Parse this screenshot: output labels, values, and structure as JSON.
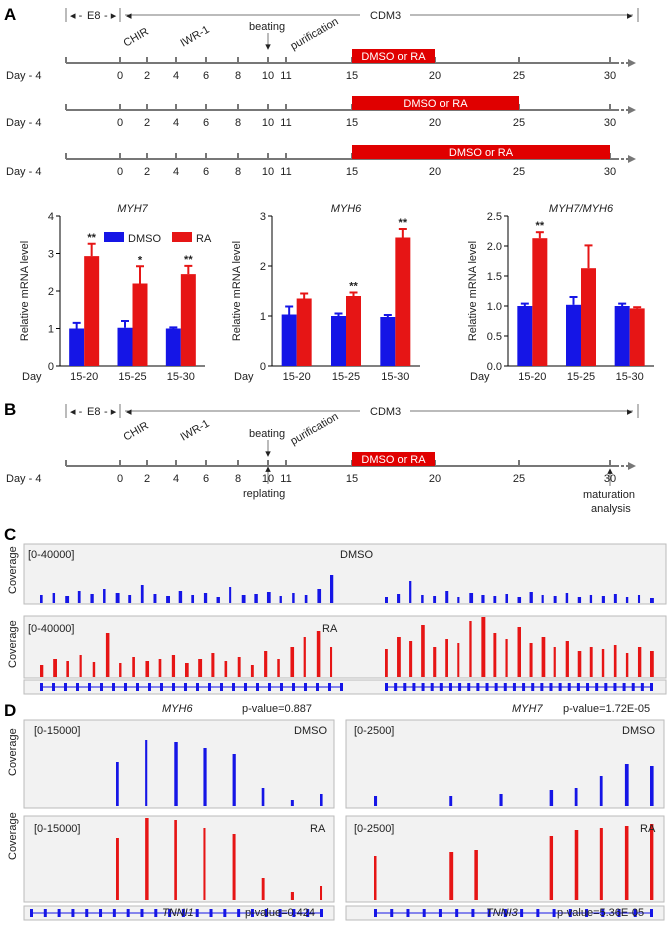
{
  "colors": {
    "dmso": "#1515e6",
    "ra": "#e61515",
    "axis": "#777777",
    "bar": "#e00000",
    "track_bg": "#f2f2f2"
  },
  "timelines": {
    "day_prefix": "Day - 4",
    "day_ticks": [
      {
        "label": "0",
        "day": 0
      },
      {
        "label": "2",
        "day": 2
      },
      {
        "label": "4",
        "day": 4
      },
      {
        "label": "6",
        "day": 6
      },
      {
        "label": "8",
        "day": 8
      },
      {
        "label": "10",
        "day": 10
      },
      {
        "label": "11",
        "day": 11
      },
      {
        "label": "15",
        "day": 15
      },
      {
        "label": "20",
        "day": 20
      },
      {
        "label": "25",
        "day": 25
      },
      {
        "label": "30",
        "day": 30
      }
    ],
    "e8": "E8",
    "cdm3": "CDM3",
    "chir": "CHIR",
    "iwr": "IWR-1",
    "beating": "beating",
    "purification": "purification",
    "treatment": "DMSO or RA",
    "replating": "replating",
    "maturation": "maturation\nanalysis",
    "windows": [
      {
        "start": 15,
        "end": 20
      },
      {
        "start": 15,
        "end": 25
      },
      {
        "start": 15,
        "end": 30
      }
    ]
  },
  "panels": {
    "a": "A",
    "b": "B",
    "c": "C",
    "d": "D"
  },
  "chart_data": [
    {
      "type": "bar",
      "title": "MYH7",
      "ylabel": "Relative mRNA level",
      "xlabel": "Day",
      "ylim": [
        0,
        4
      ],
      "yticks": [
        "0",
        "1",
        "2",
        "3",
        "4"
      ],
      "categories": [
        "15-20",
        "15-25",
        "15-30"
      ],
      "series": [
        {
          "name": "DMSO",
          "values": [
            1.0,
            1.02,
            1.0
          ],
          "err": [
            0.15,
            0.18,
            0.03
          ]
        },
        {
          "name": "RA",
          "values": [
            2.93,
            2.2,
            2.45
          ],
          "err": [
            0.33,
            0.46,
            0.22
          ]
        }
      ],
      "annotations": [
        "**",
        "*",
        "**"
      ],
      "legend": [
        "DMSO",
        "RA"
      ]
    },
    {
      "type": "bar",
      "title": "MYH6",
      "ylabel": "Relative mRNA level",
      "xlabel": "Day",
      "ylim": [
        0,
        3
      ],
      "yticks": [
        "0",
        "1",
        "2",
        "3"
      ],
      "categories": [
        "15-20",
        "15-25",
        "15-30"
      ],
      "series": [
        {
          "name": "DMSO",
          "values": [
            1.03,
            1.0,
            0.98
          ],
          "err": [
            0.16,
            0.05,
            0.04
          ]
        },
        {
          "name": "RA",
          "values": [
            1.35,
            1.4,
            2.57
          ],
          "err": [
            0.1,
            0.07,
            0.17
          ]
        }
      ],
      "annotations": [
        "",
        "**",
        "**"
      ]
    },
    {
      "type": "bar",
      "title": "MYH7/MYH6",
      "ylabel": "Relative mRNA level",
      "xlabel": "Day",
      "ylim": [
        0,
        2.5
      ],
      "yticks": [
        "0.0",
        "0.5",
        "1.0",
        "1.5",
        "2.0",
        "2.5"
      ],
      "categories": [
        "15-20",
        "15-25",
        "15-30"
      ],
      "series": [
        {
          "name": "DMSO",
          "values": [
            1.0,
            1.02,
            1.0
          ],
          "err": [
            0.04,
            0.13,
            0.04
          ]
        },
        {
          "name": "RA",
          "values": [
            2.13,
            1.63,
            0.96
          ],
          "err": [
            0.1,
            0.38,
            0.02
          ]
        }
      ],
      "annotations": [
        "**",
        "",
        ""
      ]
    }
  ],
  "tracks": {
    "c": {
      "range": "[0-40000]",
      "dmso": "DMSO",
      "ra": "RA",
      "coverage": "Coverage",
      "gene1": "MYH6",
      "p1": "p-value=0.887",
      "gene2": "MYH7",
      "p2": "p-value=1.72E-05"
    },
    "d1": {
      "range": "[0-15000]",
      "dmso": "DMSO",
      "ra": "RA",
      "coverage": "Coverage",
      "gene": "TNNI1",
      "p": "p-value=0.424"
    },
    "d2": {
      "range": "[0-2500]",
      "dmso": "DMSO",
      "ra": "RA",
      "gene": "TNNI3",
      "p": "p-value=5.36E-05"
    }
  }
}
